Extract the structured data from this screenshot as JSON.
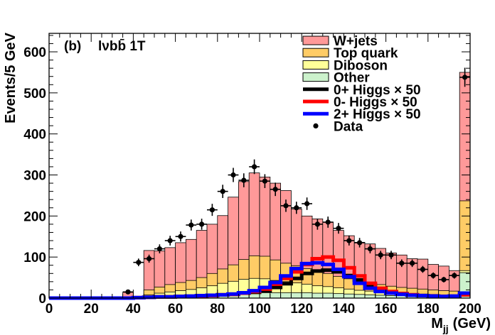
{
  "chart_data": {
    "type": "stacked-histogram",
    "panel_label": "(b)",
    "channel_label": "lνbb̄ 1T",
    "xlabel": "M_jj (GeV)",
    "xlabel_main": "M",
    "xlabel_sub": "jj",
    "xlabel_unit": "(GeV)",
    "ylabel": "Events/5 GeV",
    "xlim": [
      0,
      200
    ],
    "ylim": [
      0,
      645
    ],
    "x_ticks": [
      0,
      20,
      40,
      60,
      80,
      100,
      120,
      140,
      160,
      180,
      200
    ],
    "y_ticks": [
      0,
      100,
      200,
      300,
      400,
      500,
      600
    ],
    "bin_width": 5,
    "bin_edges_start": [
      0,
      5,
      10,
      15,
      20,
      25,
      30,
      35,
      40,
      45,
      50,
      55,
      60,
      65,
      70,
      75,
      80,
      85,
      90,
      95,
      100,
      105,
      110,
      115,
      120,
      125,
      130,
      135,
      140,
      145,
      150,
      155,
      160,
      165,
      170,
      175,
      180,
      185,
      190,
      195
    ],
    "stack": [
      {
        "name": "Other",
        "color": "#ccf2cc",
        "values": [
          0,
          0,
          0,
          0,
          0,
          0,
          0,
          0,
          0,
          2,
          4,
          5,
          6,
          7,
          8,
          9,
          10,
          11,
          12,
          12,
          13,
          13,
          13,
          13,
          13,
          12,
          12,
          11,
          10,
          9,
          8,
          7,
          6,
          6,
          5,
          5,
          4,
          4,
          4,
          62
        ]
      },
      {
        "name": "Diboson",
        "color": "#ffff99",
        "values": [
          0,
          0,
          0,
          0,
          0,
          0,
          0,
          0,
          0,
          6,
          8,
          10,
          12,
          14,
          17,
          21,
          26,
          30,
          34,
          36,
          34,
          30,
          27,
          24,
          21,
          18,
          16,
          14,
          12,
          10,
          9,
          8,
          7,
          6,
          6,
          5,
          5,
          4,
          4,
          5
        ]
      },
      {
        "name": "Top quark",
        "color": "#ffcc66",
        "values": [
          0,
          0,
          0,
          0,
          0,
          0,
          0,
          0,
          0,
          12,
          15,
          18,
          20,
          22,
          25,
          30,
          35,
          40,
          48,
          55,
          55,
          50,
          45,
          42,
          38,
          35,
          32,
          28,
          25,
          22,
          20,
          18,
          16,
          14,
          13,
          12,
          11,
          10,
          9,
          170
        ]
      },
      {
        "name": "W+jets",
        "color": "#ff9999",
        "values": [
          0,
          0,
          0,
          0,
          0,
          0,
          0,
          14,
          0,
          96,
          88,
          90,
          97,
          100,
          115,
          120,
          130,
          165,
          190,
          202,
          193,
          187,
          177,
          138,
          128,
          128,
          125,
          112,
          105,
          95,
          95,
          88,
          81,
          79,
          72,
          73,
          62,
          60,
          50,
          313
        ]
      }
    ],
    "signals": [
      {
        "name": "0+ Higgs × 50",
        "color": "#000000",
        "values": [
          0,
          0,
          0,
          0,
          0,
          0,
          0,
          0,
          1,
          2,
          3,
          3,
          4,
          4,
          5,
          6,
          8,
          9,
          12,
          14,
          18,
          26,
          35,
          48,
          60,
          66,
          68,
          64,
          55,
          44,
          32,
          22,
          15,
          11,
          8,
          6,
          5,
          4,
          4,
          8
        ]
      },
      {
        "name": "0- Higgs × 50",
        "color": "#ff0000",
        "values": [
          0,
          0,
          0,
          0,
          0,
          0,
          0,
          0,
          1,
          2,
          3,
          3,
          4,
          4,
          5,
          6,
          8,
          9,
          12,
          16,
          22,
          34,
          48,
          64,
          82,
          96,
          100,
          92,
          74,
          54,
          36,
          24,
          16,
          11,
          8,
          6,
          5,
          4,
          4,
          8
        ]
      },
      {
        "name": "2+ Higgs × 50",
        "color": "#0000ff",
        "values": [
          0,
          0,
          0,
          0,
          0,
          0,
          0,
          0,
          1,
          2,
          3,
          3,
          4,
          5,
          6,
          7,
          8,
          10,
          13,
          18,
          26,
          38,
          54,
          72,
          84,
          86,
          82,
          70,
          52,
          36,
          24,
          16,
          12,
          9,
          7,
          6,
          5,
          4,
          5,
          12
        ]
      }
    ],
    "data_points": {
      "name": "Data",
      "x": [
        37.5,
        42.5,
        47.5,
        52.5,
        57.5,
        62.5,
        67.5,
        72.5,
        77.5,
        82.5,
        87.5,
        92.5,
        97.5,
        102.5,
        107.5,
        112.5,
        117.5,
        122.5,
        127.5,
        132.5,
        137.5,
        142.5,
        147.5,
        152.5,
        157.5,
        162.5,
        167.5,
        172.5,
        177.5,
        182.5,
        187.5,
        192.5,
        197.5
      ],
      "y": [
        15,
        87,
        96,
        120,
        140,
        150,
        178,
        180,
        215,
        260,
        300,
        287,
        320,
        285,
        265,
        225,
        220,
        230,
        180,
        185,
        170,
        140,
        135,
        120,
        105,
        105,
        85,
        85,
        70,
        55,
        45,
        55,
        538
      ]
    },
    "legend": {
      "placement": "top-right",
      "entries": [
        {
          "label": "W+jets",
          "kind": "box",
          "color": "#ff9999"
        },
        {
          "label": "Top quark",
          "kind": "box",
          "color": "#ffcc66"
        },
        {
          "label": "Diboson",
          "kind": "box",
          "color": "#ffff99"
        },
        {
          "label": "Other",
          "kind": "box",
          "color": "#ccf2cc"
        },
        {
          "label": "0+ Higgs × 50",
          "kind": "line",
          "color": "#000000"
        },
        {
          "label": "0- Higgs × 50",
          "kind": "line",
          "color": "#ff0000"
        },
        {
          "label": "2+ Higgs × 50",
          "kind": "line",
          "color": "#0000ff"
        },
        {
          "label": "Data",
          "kind": "marker",
          "color": "#000000"
        }
      ]
    }
  }
}
